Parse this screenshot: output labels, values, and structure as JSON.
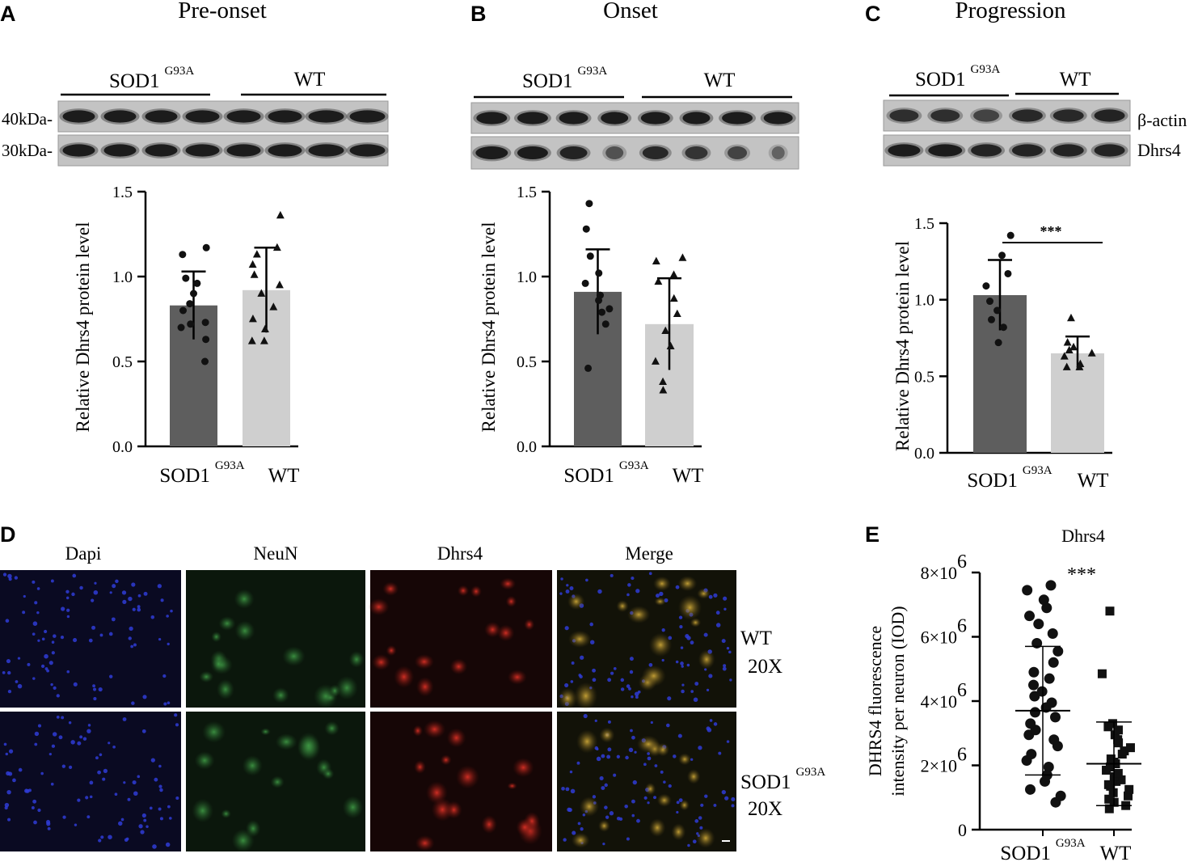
{
  "panels": [
    {
      "letter": "A",
      "title": "Pre-onset"
    },
    {
      "letter": "B",
      "title": "Onset"
    },
    {
      "letter": "C",
      "title": "Progression"
    },
    {
      "letter": "D",
      "title": ""
    },
    {
      "letter": "E",
      "title": "Dhrs4"
    }
  ],
  "groups": {
    "sod1": "SOD1",
    "sup": "G93A",
    "wt": "WT"
  },
  "blot": {
    "mw_labels": [
      "40kDa-",
      "30kDa-"
    ],
    "band_labels": [
      "β-actin",
      "Dhrs4"
    ]
  },
  "if_panel": {
    "columns": [
      "Dapi",
      "NeuN",
      "Dhrs4",
      "Merge"
    ],
    "rows": [
      {
        "group": "WT",
        "sup": "",
        "mag": "20X"
      },
      {
        "group": "SOD1",
        "sup": "G93A",
        "mag": "20X"
      }
    ]
  },
  "chart_data": [
    {
      "type": "bar",
      "panel": "A",
      "title": "Pre-onset",
      "ylabel": "Relative Dhrs4 protein level",
      "ylim": [
        0,
        1.5
      ],
      "yticks": [
        0.0,
        0.5,
        1.0,
        1.5
      ],
      "ytick_labels": [
        "0.0",
        "0.5",
        "1.0",
        "1.5"
      ],
      "categories": [
        "SOD1 G93A",
        "WT"
      ],
      "series": [
        {
          "values": [
            0.83,
            0.92
          ],
          "sd": [
            0.2,
            0.25
          ],
          "colors": [
            "#5e5e5e",
            "#cfcfcf"
          ]
        }
      ],
      "points": [
        [
          0.5,
          0.63,
          0.7,
          0.72,
          0.73,
          0.8,
          0.84,
          0.9,
          0.96,
          0.99,
          1.13,
          1.17
        ],
        [
          0.62,
          0.62,
          0.69,
          0.75,
          0.82,
          0.9,
          0.95,
          1.01,
          1.07,
          1.13,
          1.17,
          1.36
        ]
      ],
      "point_shapes": [
        "circle",
        "triangle"
      ],
      "significance": ""
    },
    {
      "type": "bar",
      "panel": "B",
      "title": "Onset",
      "ylabel": "Relative Dhrs4 protein level",
      "ylim": [
        0,
        1.5
      ],
      "yticks": [
        0.0,
        0.5,
        1.0,
        1.5
      ],
      "ytick_labels": [
        "0.0",
        "0.5",
        "1.0",
        "1.5"
      ],
      "categories": [
        "SOD1 G93A",
        "WT"
      ],
      "series": [
        {
          "values": [
            0.91,
            0.72
          ],
          "sd": [
            0.25,
            0.27
          ],
          "colors": [
            "#5e5e5e",
            "#cfcfcf"
          ]
        }
      ],
      "points": [
        [
          0.46,
          0.72,
          0.79,
          0.81,
          0.86,
          0.89,
          0.96,
          1.02,
          1.12,
          1.28,
          1.43
        ],
        [
          0.33,
          0.38,
          0.5,
          0.59,
          0.68,
          0.78,
          0.87,
          0.97,
          1.01,
          1.09,
          1.11
        ]
      ],
      "point_shapes": [
        "circle",
        "triangle"
      ],
      "significance": ""
    },
    {
      "type": "bar",
      "panel": "C",
      "title": "Progression",
      "ylabel": "Relative Dhrs4 protein level",
      "ylim": [
        0,
        1.5
      ],
      "yticks": [
        0.0,
        0.5,
        1.0,
        1.5
      ],
      "ytick_labels": [
        "0.0",
        "0.5",
        "1.0",
        "1.5"
      ],
      "categories": [
        "SOD1 G93A",
        "WT"
      ],
      "series": [
        {
          "values": [
            1.03,
            0.65
          ],
          "sd": [
            0.23,
            0.11
          ],
          "colors": [
            "#5e5e5e",
            "#cfcfcf"
          ]
        }
      ],
      "points": [
        [
          0.72,
          0.82,
          0.87,
          0.93,
          0.99,
          1.09,
          1.17,
          1.29,
          1.42
        ],
        [
          0.56,
          0.56,
          0.58,
          0.63,
          0.65,
          0.67,
          0.69,
          0.72,
          0.88
        ]
      ],
      "point_shapes": [
        "circle",
        "triangle"
      ],
      "significance": "***"
    },
    {
      "type": "scatter",
      "panel": "E",
      "title": "Dhrs4",
      "ylabel": "DHRS4 fluorescence intensity per neuron (IOD)",
      "ylabel_lines": [
        "DHRS4 fluorescence",
        "intensity per neuron (IOD)"
      ],
      "ylim": [
        0,
        8000000
      ],
      "yticks": [
        0,
        2000000,
        4000000,
        6000000,
        8000000
      ],
      "ytick_labels": [
        "0",
        "2×10",
        "4×10",
        "6×10",
        "8×10"
      ],
      "ytick_exponent": "6",
      "categories": [
        "SOD1 G93A",
        "WT"
      ],
      "mean": [
        3700000,
        2050000
      ],
      "sd": [
        2000000,
        1300000
      ],
      "points": [
        [
          850000,
          1050000,
          1250000,
          1500000,
          1700000,
          1950000,
          2150000,
          2350000,
          2600000,
          2800000,
          2950000,
          3100000,
          3300000,
          3500000,
          3650000,
          3800000,
          3950000,
          4150000,
          4300000,
          4500000,
          4700000,
          4900000,
          5200000,
          5550000,
          5800000,
          6100000,
          6400000,
          6650000,
          6900000,
          7150000,
          7450000,
          7600000
        ],
        [
          650000,
          750000,
          850000,
          950000,
          1050000,
          1150000,
          1250000,
          1350000,
          1400000,
          1500000,
          1550000,
          1650000,
          1750000,
          1850000,
          1950000,
          2050000,
          2100000,
          2200000,
          2350000,
          2450000,
          2550000,
          2700000,
          2800000,
          2950000,
          3100000,
          3200000,
          3300000,
          4850000,
          6800000
        ]
      ],
      "point_shapes": [
        "circle",
        "square"
      ],
      "significance": "***"
    }
  ]
}
